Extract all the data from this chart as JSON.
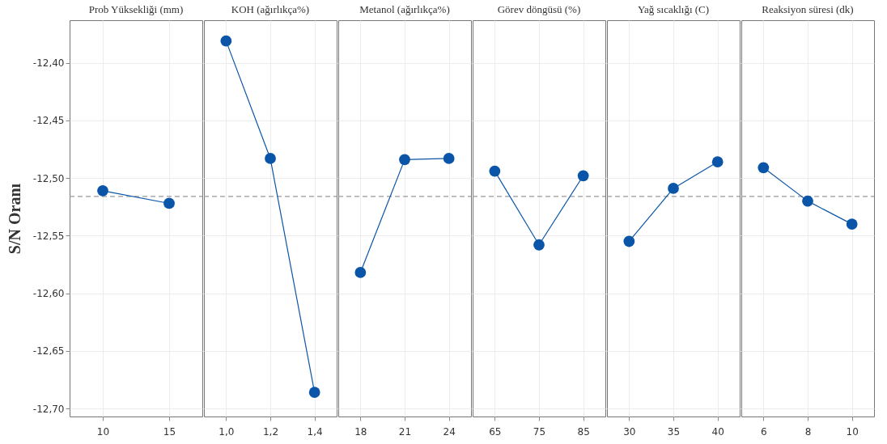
{
  "chart_data": [
    {
      "type": "line",
      "title": "Prob Yüksekliği (mm)",
      "ylabel": "S/N Oranı",
      "categories": [
        "10",
        "15"
      ],
      "series": [
        {
          "color": "#0b55a8",
          "values": [
            -12.511,
            -12.522
          ]
        }
      ],
      "ylim": [
        -12.707,
        -12.363
      ],
      "yticks": [
        {
          "value": -12.4,
          "label": "-12,40"
        },
        {
          "value": -12.45,
          "label": "-12,45"
        },
        {
          "value": -12.5,
          "label": "-12,50"
        },
        {
          "value": -12.55,
          "label": "-12,55"
        },
        {
          "value": -12.6,
          "label": "-12,60"
        },
        {
          "value": -12.65,
          "label": "-12,65"
        },
        {
          "value": -12.7,
          "label": "-12,70"
        }
      ],
      "grid": true,
      "marker": "circle",
      "ref_lines": [
        {
          "axis": "y",
          "value": -12.516,
          "color": "#999999",
          "line_style": "dashed"
        }
      ]
    },
    {
      "type": "line",
      "title": "KOH (ağırlıkça%)",
      "categories": [
        "1,0",
        "1,2",
        "1,4"
      ],
      "series": [
        {
          "color": "#0b55a8",
          "values": [
            -12.381,
            -12.483,
            -12.686
          ]
        }
      ],
      "ylim": [
        -12.707,
        -12.363
      ],
      "yticks": [
        {
          "value": -12.4,
          "label": null
        },
        {
          "value": -12.45,
          "label": null
        },
        {
          "value": -12.5,
          "label": null
        },
        {
          "value": -12.55,
          "label": null
        },
        {
          "value": -12.6,
          "label": null
        },
        {
          "value": -12.65,
          "label": null
        },
        {
          "value": -12.7,
          "label": null
        }
      ],
      "grid": true,
      "marker": "circle",
      "tick_labels": "x",
      "ref_lines": [
        {
          "axis": "y",
          "value": -12.516,
          "color": "#999999",
          "line_style": "dashed"
        }
      ]
    },
    {
      "type": "line",
      "title": "Metanol (ağırlıkça%)",
      "categories": [
        "18",
        "21",
        "24"
      ],
      "series": [
        {
          "color": "#0b55a8",
          "values": [
            -12.582,
            -12.484,
            -12.483
          ]
        }
      ],
      "ylim": [
        -12.707,
        -12.363
      ],
      "yticks": [
        {
          "value": -12.4,
          "label": null
        },
        {
          "value": -12.45,
          "label": null
        },
        {
          "value": -12.5,
          "label": null
        },
        {
          "value": -12.55,
          "label": null
        },
        {
          "value": -12.6,
          "label": null
        },
        {
          "value": -12.65,
          "label": null
        },
        {
          "value": -12.7,
          "label": null
        }
      ],
      "grid": true,
      "marker": "circle",
      "tick_labels": "x",
      "ref_lines": [
        {
          "axis": "y",
          "value": -12.516,
          "color": "#999999",
          "line_style": "dashed"
        }
      ]
    },
    {
      "type": "line",
      "title": "Görev döngüsü (%)",
      "categories": [
        "65",
        "75",
        "85"
      ],
      "series": [
        {
          "color": "#0b55a8",
          "values": [
            -12.494,
            -12.558,
            -12.498
          ]
        }
      ],
      "ylim": [
        -12.707,
        -12.363
      ],
      "yticks": [
        {
          "value": -12.4,
          "label": null
        },
        {
          "value": -12.45,
          "label": null
        },
        {
          "value": -12.5,
          "label": null
        },
        {
          "value": -12.55,
          "label": null
        },
        {
          "value": -12.6,
          "label": null
        },
        {
          "value": -12.65,
          "label": null
        },
        {
          "value": -12.7,
          "label": null
        }
      ],
      "grid": true,
      "marker": "circle",
      "tick_labels": "x",
      "ref_lines": [
        {
          "axis": "y",
          "value": -12.516,
          "color": "#999999",
          "line_style": "dashed"
        }
      ]
    },
    {
      "type": "line",
      "title": "Yağ sıcaklığı (C)",
      "categories": [
        "30",
        "35",
        "40"
      ],
      "series": [
        {
          "color": "#0b55a8",
          "values": [
            -12.555,
            -12.509,
            -12.486
          ]
        }
      ],
      "ylim": [
        -12.707,
        -12.363
      ],
      "yticks": [
        {
          "value": -12.4,
          "label": null
        },
        {
          "value": -12.45,
          "label": null
        },
        {
          "value": -12.5,
          "label": null
        },
        {
          "value": -12.55,
          "label": null
        },
        {
          "value": -12.6,
          "label": null
        },
        {
          "value": -12.65,
          "label": null
        },
        {
          "value": -12.7,
          "label": null
        }
      ],
      "grid": true,
      "marker": "circle",
      "tick_labels": "x",
      "ref_lines": [
        {
          "axis": "y",
          "value": -12.516,
          "color": "#999999",
          "line_style": "dashed"
        }
      ]
    },
    {
      "type": "line",
      "title": "Reaksiyon süresi (dk)",
      "categories": [
        "6",
        "8",
        "10"
      ],
      "series": [
        {
          "color": "#0b55a8",
          "values": [
            -12.491,
            -12.52,
            -12.54
          ]
        }
      ],
      "ylim": [
        -12.707,
        -12.363
      ],
      "yticks": [
        {
          "value": -12.4,
          "label": null
        },
        {
          "value": -12.45,
          "label": null
        },
        {
          "value": -12.5,
          "label": null
        },
        {
          "value": -12.55,
          "label": null
        },
        {
          "value": -12.6,
          "label": null
        },
        {
          "value": -12.65,
          "label": null
        },
        {
          "value": -12.7,
          "label": null
        }
      ],
      "grid": true,
      "marker": "circle",
      "tick_labels": "x",
      "ref_lines": [
        {
          "axis": "y",
          "value": -12.516,
          "color": "#999999",
          "line_style": "dashed"
        }
      ]
    }
  ]
}
